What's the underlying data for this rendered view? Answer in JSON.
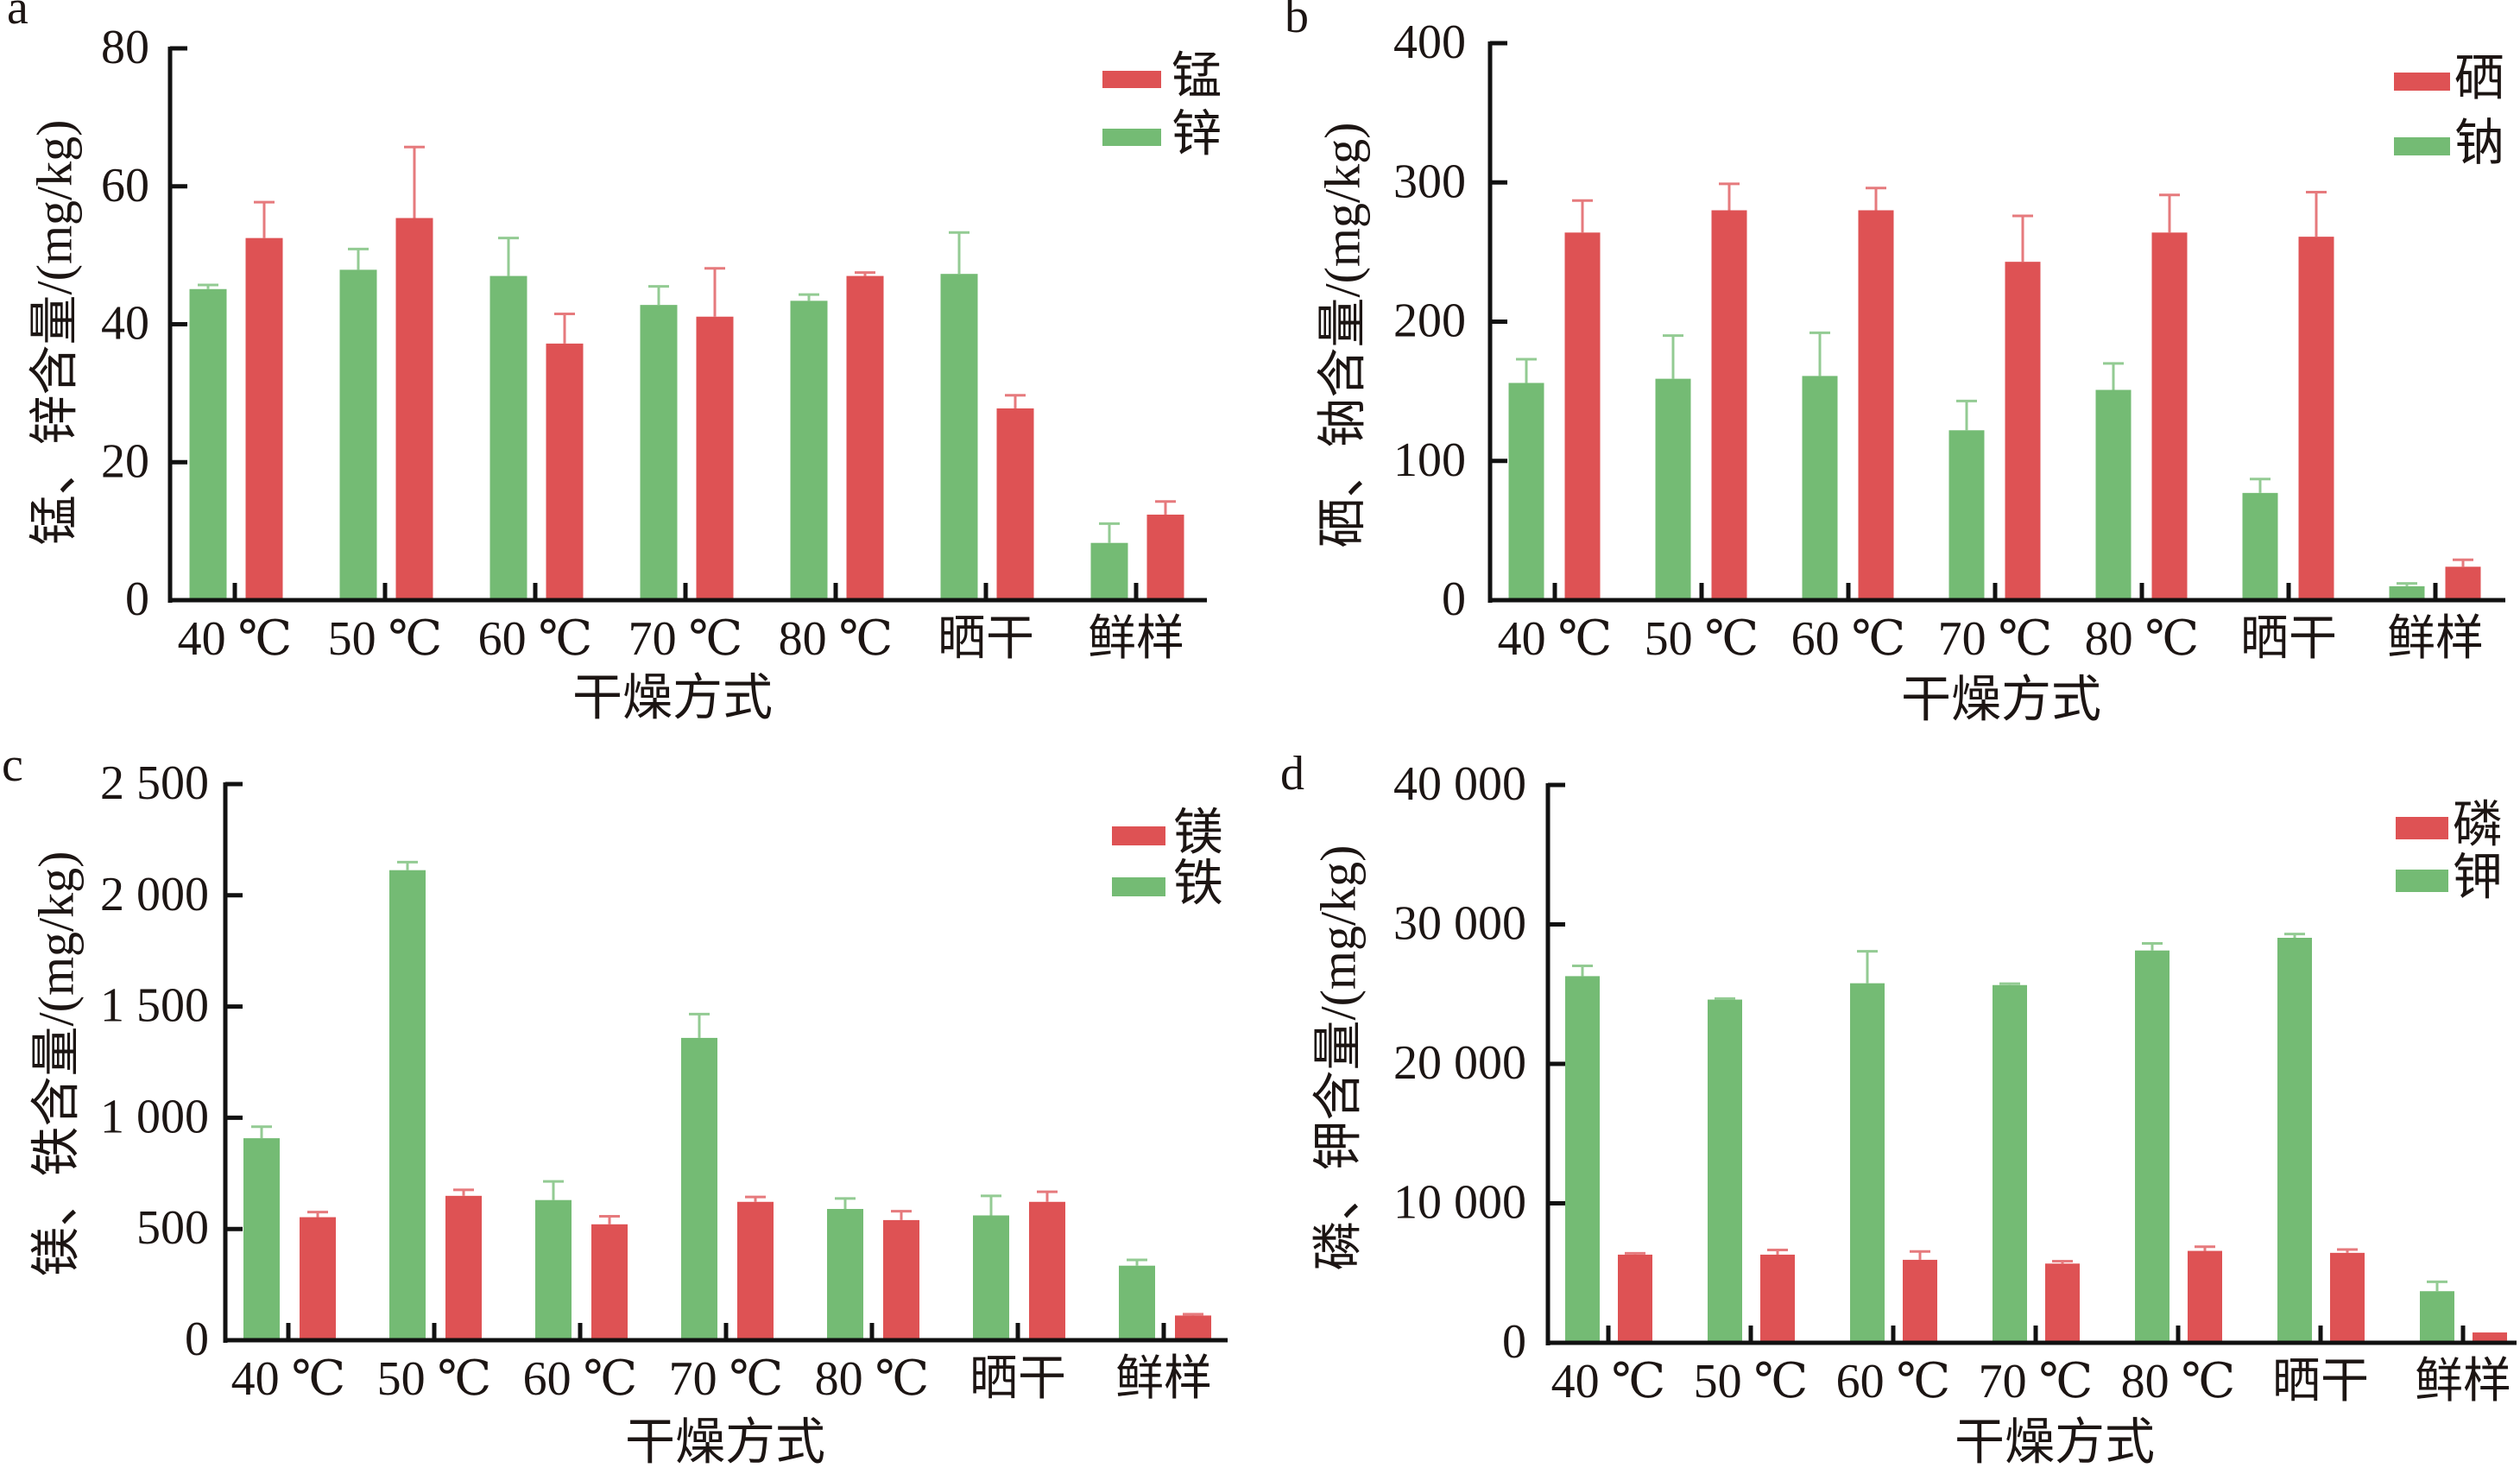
{
  "chart_data": [
    {
      "panel_label": "a",
      "type": "bar",
      "title": "",
      "xlabel": "干燥方式",
      "ylabel": "锰、锌含量/(mg/kg)",
      "categories": [
        "40 ℃",
        "50 ℃",
        "60 ℃",
        "70 ℃",
        "80 ℃",
        "晒干",
        "鲜样"
      ],
      "ylim": [
        0,
        80
      ],
      "yticks": [
        0,
        20,
        40,
        60,
        80
      ],
      "ytick_labels": [
        "0",
        "20",
        "40",
        "60",
        "80"
      ],
      "grid": false,
      "legend": {
        "position": "top-right",
        "entries": [
          "锰",
          "锌"
        ]
      },
      "series": [
        {
          "name": "锌",
          "color": "#74BB74",
          "error_color": "#93CB93",
          "values": [
            45.1,
            47.9,
            47.0,
            42.8,
            43.4,
            47.3,
            8.3
          ],
          "errors": [
            0.6,
            3.0,
            5.5,
            2.7,
            0.9,
            6.0,
            2.8
          ]
        },
        {
          "name": "锰",
          "color": "#DE5254",
          "error_color": "#E67A7D",
          "values": [
            52.5,
            55.4,
            37.2,
            41.1,
            47.0,
            27.8,
            12.4
          ],
          "errors": [
            5.2,
            10.3,
            4.3,
            7.0,
            0.5,
            1.9,
            1.9
          ]
        }
      ]
    },
    {
      "panel_label": "b",
      "type": "bar",
      "title": "",
      "xlabel": "干燥方式",
      "ylabel": "硒、钠含量/(mg/kg)",
      "categories": [
        "40 ℃",
        "50 ℃",
        "60 ℃",
        "70 ℃",
        "80 ℃",
        "晒干",
        "鲜样"
      ],
      "ylim": [
        0,
        400
      ],
      "yticks": [
        0,
        100,
        200,
        300,
        400
      ],
      "ytick_labels": [
        "0",
        "100",
        "200",
        "300",
        "400"
      ],
      "grid": false,
      "legend": {
        "position": "top-right",
        "entries": [
          "硒",
          "钠"
        ]
      },
      "series": [
        {
          "name": "钠",
          "color": "#74BB74",
          "error_color": "#93CB93",
          "values": [
            156,
            159,
            161,
            122,
            151,
            77,
            10
          ],
          "errors": [
            17,
            31,
            31,
            21,
            19,
            10,
            2
          ]
        },
        {
          "name": "硒",
          "color": "#DE5254",
          "error_color": "#E67A7D",
          "values": [
            264,
            280,
            280,
            243,
            264,
            261,
            24
          ],
          "errors": [
            23,
            19,
            16,
            33,
            27,
            32,
            5
          ]
        }
      ]
    },
    {
      "panel_label": "c",
      "type": "bar",
      "title": "",
      "xlabel": "干燥方式",
      "ylabel": "镁、铁含量/(mg/kg)",
      "categories": [
        "40 ℃",
        "50 ℃",
        "60 ℃",
        "70 ℃",
        "80 ℃",
        "晒干",
        "鲜样"
      ],
      "ylim": [
        0,
        2500
      ],
      "yticks": [
        0,
        500,
        1000,
        1500,
        2000,
        2500
      ],
      "ytick_labels": [
        "0",
        "500",
        "1 000",
        "1 500",
        "2 000",
        "2 500"
      ],
      "grid": false,
      "legend": {
        "position": "top-right",
        "entries": [
          "镁",
          "铁"
        ]
      },
      "series": [
        {
          "name": "铁",
          "color": "#74BB74",
          "error_color": "#93CB93",
          "values": [
            908,
            2113,
            630,
            1359,
            590,
            561,
            335
          ],
          "errors": [
            52,
            36,
            84,
            107,
            47,
            88,
            26
          ]
        },
        {
          "name": "镁",
          "color": "#DE5254",
          "error_color": "#E67A7D",
          "values": [
            553,
            649,
            521,
            622,
            540,
            622,
            111
          ],
          "errors": [
            23,
            27,
            36,
            22,
            40,
            45,
            6
          ]
        }
      ]
    },
    {
      "panel_label": "d",
      "type": "bar",
      "title": "",
      "xlabel": "干燥方式",
      "ylabel": "磷、钾含量/(mg/kg)",
      "categories": [
        "40 ℃",
        "50 ℃",
        "60 ℃",
        "70 ℃",
        "80 ℃",
        "晒干",
        "鲜样"
      ],
      "ylim": [
        0,
        40000
      ],
      "yticks": [
        0,
        10000,
        20000,
        30000,
        40000
      ],
      "ytick_labels": [
        "0",
        "10 000",
        "20 000",
        "30 000",
        "40 000"
      ],
      "grid": false,
      "legend": {
        "position": "top-right",
        "entries": [
          "磷",
          "钾"
        ]
      },
      "series": [
        {
          "name": "钾",
          "color": "#74BB74",
          "error_color": "#93CB93",
          "values": [
            26290,
            24610,
            25780,
            25650,
            28130,
            29040,
            3700
          ],
          "errors": [
            740,
            70,
            2290,
            100,
            510,
            270,
            670
          ]
        },
        {
          "name": "磷",
          "color": "#DE5254",
          "error_color": "#E67A7D",
          "values": [
            6320,
            6320,
            5950,
            5680,
            6590,
            6450,
            740
          ],
          "errors": [
            100,
            340,
            600,
            170,
            300,
            240,
            0
          ]
        }
      ]
    }
  ]
}
